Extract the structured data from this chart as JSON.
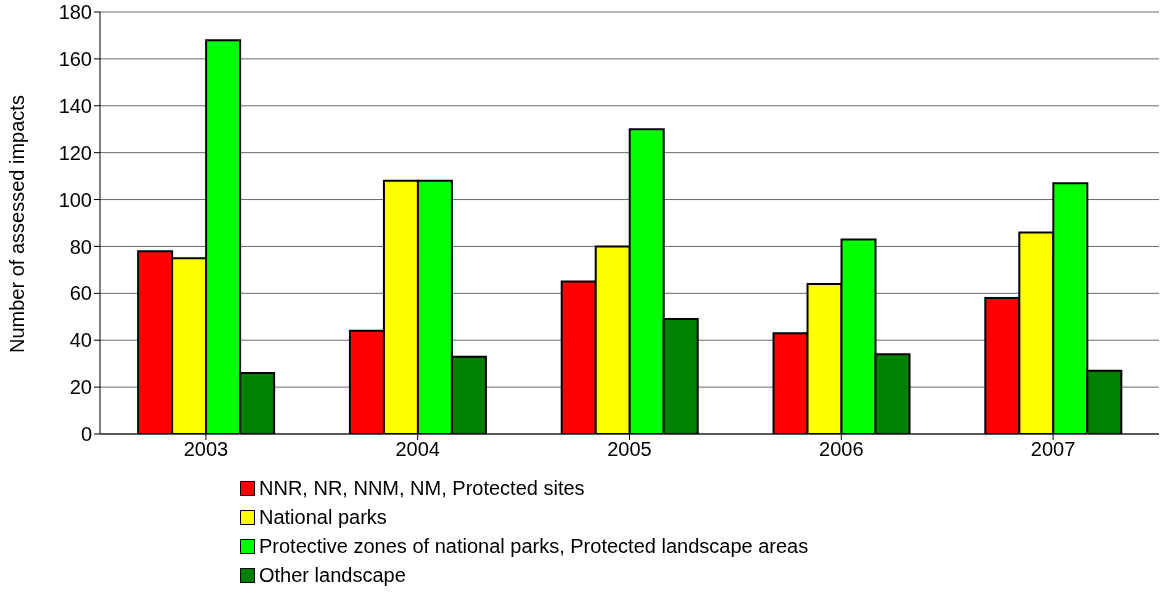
{
  "chart_data": {
    "type": "bar",
    "ylabel": "Number of assessed impacts",
    "categories": [
      "2003",
      "2004",
      "2005",
      "2006",
      "2007"
    ],
    "series": [
      {
        "name": "NNR, NR, NNM, NM, Protected sites",
        "color": "#ff0000",
        "values": [
          78,
          44,
          65,
          43,
          58
        ]
      },
      {
        "name": "National parks",
        "color": "#ffff00",
        "values": [
          75,
          108,
          80,
          64,
          86
        ]
      },
      {
        "name": "Protective zones of national parks, Protected landscape areas",
        "color": "#00ff00",
        "values": [
          168,
          108,
          130,
          83,
          107
        ]
      },
      {
        "name": "Other landscape",
        "color": "#008000",
        "values": [
          26,
          33,
          49,
          34,
          27
        ]
      }
    ],
    "ylim": [
      0,
      180
    ],
    "yticks": [
      0,
      20,
      40,
      60,
      80,
      100,
      120,
      140,
      160,
      180
    ],
    "grid": "y",
    "legend": "bottom"
  }
}
